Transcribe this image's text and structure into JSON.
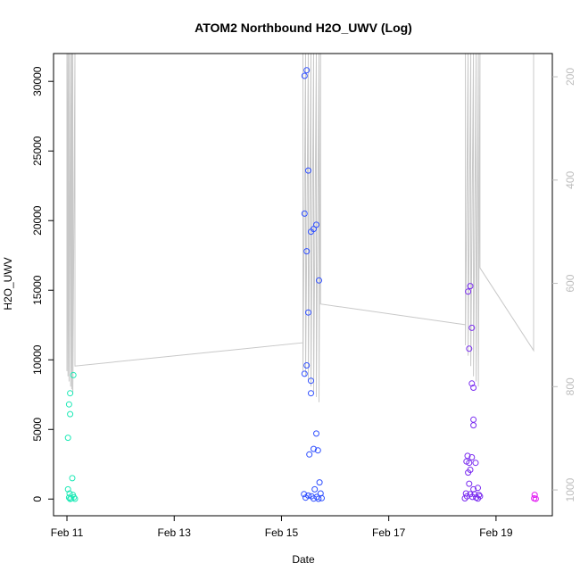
{
  "chart_data": {
    "type": "scatter",
    "title": "ATOM2 Northbound H2O_UWV (Log)",
    "xlabel": "Date",
    "ylabel": "H2O_UWV",
    "x_ticks": [
      "Feb 11",
      "Feb 13",
      "Feb 15",
      "Feb 17",
      "Feb 19"
    ],
    "x_tick_days": [
      11,
      13,
      15,
      17,
      19
    ],
    "xlim": [
      10.75,
      20.05
    ],
    "y_ticks": [
      0,
      5000,
      10000,
      15000,
      20000,
      25000,
      30000
    ],
    "ylim": [
      -1200,
      32000
    ],
    "y2_label": "",
    "y2_ticks": [
      200,
      400,
      600,
      800,
      1000
    ],
    "y2lim": [
      1050,
      155
    ],
    "colors": {
      "line": "#c8c8c8",
      "right_axis": "#bdbdbd",
      "group_1": "#1de9b6",
      "group_2": "#2f4fff",
      "group_3": "#7a2cf0",
      "group_4": "#e21cf2"
    },
    "points": [
      {
        "x": 11.02,
        "y": 4400,
        "g": 1
      },
      {
        "x": 11.04,
        "y": 6800,
        "g": 1
      },
      {
        "x": 11.06,
        "y": 7600,
        "g": 1
      },
      {
        "x": 11.06,
        "y": 6100,
        "g": 1
      },
      {
        "x": 11.12,
        "y": 8900,
        "g": 1
      },
      {
        "x": 11.1,
        "y": 1500,
        "g": 1
      },
      {
        "x": 11.02,
        "y": 700,
        "g": 1
      },
      {
        "x": 11.05,
        "y": 400,
        "g": 1
      },
      {
        "x": 11.11,
        "y": 300,
        "g": 1
      },
      {
        "x": 11.04,
        "y": 100,
        "g": 1
      },
      {
        "x": 11.08,
        "y": 50,
        "g": 1
      },
      {
        "x": 11.13,
        "y": 120,
        "g": 1
      },
      {
        "x": 11.15,
        "y": 20,
        "g": 1
      },
      {
        "x": 11.06,
        "y": 10,
        "g": 1
      },
      {
        "x": 15.43,
        "y": 30400,
        "g": 2
      },
      {
        "x": 15.47,
        "y": 30800,
        "g": 2
      },
      {
        "x": 15.5,
        "y": 23600,
        "g": 2
      },
      {
        "x": 15.43,
        "y": 20500,
        "g": 2
      },
      {
        "x": 15.65,
        "y": 19700,
        "g": 2
      },
      {
        "x": 15.6,
        "y": 19400,
        "g": 2
      },
      {
        "x": 15.55,
        "y": 19200,
        "g": 2
      },
      {
        "x": 15.47,
        "y": 17800,
        "g": 2
      },
      {
        "x": 15.7,
        "y": 15700,
        "g": 2
      },
      {
        "x": 15.5,
        "y": 13400,
        "g": 2
      },
      {
        "x": 15.47,
        "y": 9600,
        "g": 2
      },
      {
        "x": 15.43,
        "y": 9000,
        "g": 2
      },
      {
        "x": 15.55,
        "y": 8500,
        "g": 2
      },
      {
        "x": 15.55,
        "y": 7600,
        "g": 2
      },
      {
        "x": 15.65,
        "y": 4700,
        "g": 2
      },
      {
        "x": 15.6,
        "y": 3600,
        "g": 2
      },
      {
        "x": 15.68,
        "y": 3500,
        "g": 2
      },
      {
        "x": 15.52,
        "y": 3200,
        "g": 2
      },
      {
        "x": 15.71,
        "y": 1200,
        "g": 2
      },
      {
        "x": 15.62,
        "y": 700,
        "g": 2
      },
      {
        "x": 15.42,
        "y": 350,
        "g": 2
      },
      {
        "x": 15.5,
        "y": 250,
        "g": 2
      },
      {
        "x": 15.56,
        "y": 200,
        "g": 2
      },
      {
        "x": 15.66,
        "y": 150,
        "g": 2
      },
      {
        "x": 15.73,
        "y": 400,
        "g": 2
      },
      {
        "x": 15.45,
        "y": 100,
        "g": 2
      },
      {
        "x": 15.6,
        "y": 30,
        "g": 2
      },
      {
        "x": 15.69,
        "y": 20,
        "g": 2
      },
      {
        "x": 15.75,
        "y": 60,
        "g": 2
      },
      {
        "x": 18.48,
        "y": 14900,
        "g": 3
      },
      {
        "x": 18.52,
        "y": 15300,
        "g": 3
      },
      {
        "x": 18.55,
        "y": 12300,
        "g": 3
      },
      {
        "x": 18.5,
        "y": 10800,
        "g": 3
      },
      {
        "x": 18.55,
        "y": 8300,
        "g": 3
      },
      {
        "x": 18.58,
        "y": 8000,
        "g": 3
      },
      {
        "x": 18.58,
        "y": 5700,
        "g": 3
      },
      {
        "x": 18.58,
        "y": 5300,
        "g": 3
      },
      {
        "x": 18.47,
        "y": 3100,
        "g": 3
      },
      {
        "x": 18.55,
        "y": 3000,
        "g": 3
      },
      {
        "x": 18.45,
        "y": 2700,
        "g": 3
      },
      {
        "x": 18.5,
        "y": 2600,
        "g": 3
      },
      {
        "x": 18.62,
        "y": 2600,
        "g": 3
      },
      {
        "x": 18.52,
        "y": 2100,
        "g": 3
      },
      {
        "x": 18.48,
        "y": 1900,
        "g": 3
      },
      {
        "x": 18.5,
        "y": 1100,
        "g": 3
      },
      {
        "x": 18.58,
        "y": 700,
        "g": 3
      },
      {
        "x": 18.66,
        "y": 800,
        "g": 3
      },
      {
        "x": 18.44,
        "y": 400,
        "g": 3
      },
      {
        "x": 18.52,
        "y": 350,
        "g": 3
      },
      {
        "x": 18.6,
        "y": 350,
        "g": 3
      },
      {
        "x": 18.68,
        "y": 300,
        "g": 3
      },
      {
        "x": 18.46,
        "y": 200,
        "g": 3
      },
      {
        "x": 18.56,
        "y": 150,
        "g": 3
      },
      {
        "x": 18.63,
        "y": 100,
        "g": 3
      },
      {
        "x": 18.7,
        "y": 200,
        "g": 3
      },
      {
        "x": 18.42,
        "y": 50,
        "g": 3
      },
      {
        "x": 18.66,
        "y": 30,
        "g": 3
      },
      {
        "x": 19.72,
        "y": 300,
        "g": 4
      },
      {
        "x": 19.71,
        "y": 50,
        "g": 4
      },
      {
        "x": 19.74,
        "y": 20,
        "g": 4
      }
    ],
    "line_series": [
      {
        "x": 11.0,
        "y2": 155
      },
      {
        "x": 11.0,
        "y2": 770
      },
      {
        "x": 11.02,
        "y2": 155
      },
      {
        "x": 11.02,
        "y2": 780
      },
      {
        "x": 11.04,
        "y2": 155
      },
      {
        "x": 11.04,
        "y2": 790
      },
      {
        "x": 11.07,
        "y2": 155
      },
      {
        "x": 11.07,
        "y2": 800
      },
      {
        "x": 11.09,
        "y2": 155
      },
      {
        "x": 11.09,
        "y2": 805
      },
      {
        "x": 11.11,
        "y2": 155
      },
      {
        "x": 11.11,
        "y2": 815
      },
      {
        "x": 11.15,
        "y2": 155
      },
      {
        "x": 11.15,
        "y2": 760
      },
      {
        "x": 15.4,
        "y2": 715
      },
      {
        "x": 15.4,
        "y2": 155
      },
      {
        "x": 15.4,
        "y2": 770
      },
      {
        "x": 15.45,
        "y2": 155
      },
      {
        "x": 15.45,
        "y2": 780
      },
      {
        "x": 15.5,
        "y2": 155
      },
      {
        "x": 15.5,
        "y2": 790
      },
      {
        "x": 15.55,
        "y2": 155
      },
      {
        "x": 15.55,
        "y2": 800
      },
      {
        "x": 15.6,
        "y2": 155
      },
      {
        "x": 15.6,
        "y2": 810
      },
      {
        "x": 15.65,
        "y2": 155
      },
      {
        "x": 15.65,
        "y2": 820
      },
      {
        "x": 15.7,
        "y2": 155
      },
      {
        "x": 15.7,
        "y2": 830
      },
      {
        "x": 15.73,
        "y2": 155
      },
      {
        "x": 15.73,
        "y2": 640
      },
      {
        "x": 18.43,
        "y2": 680
      },
      {
        "x": 18.43,
        "y2": 155
      },
      {
        "x": 18.43,
        "y2": 720
      },
      {
        "x": 18.48,
        "y2": 155
      },
      {
        "x": 18.48,
        "y2": 740
      },
      {
        "x": 18.53,
        "y2": 155
      },
      {
        "x": 18.53,
        "y2": 760
      },
      {
        "x": 18.58,
        "y2": 155
      },
      {
        "x": 18.58,
        "y2": 780
      },
      {
        "x": 18.63,
        "y2": 155
      },
      {
        "x": 18.63,
        "y2": 790
      },
      {
        "x": 18.67,
        "y2": 155
      },
      {
        "x": 18.67,
        "y2": 800
      },
      {
        "x": 18.7,
        "y2": 155
      },
      {
        "x": 18.7,
        "y2": 570
      },
      {
        "x": 19.7,
        "y2": 730
      },
      {
        "x": 19.7,
        "y2": 155
      }
    ]
  }
}
